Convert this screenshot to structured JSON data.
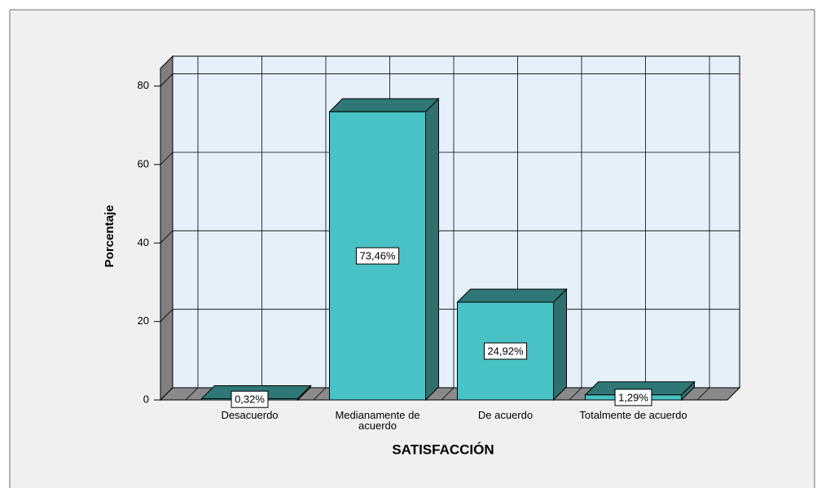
{
  "chart_data": {
    "type": "bar3d",
    "x_label": "SATISFACCIÓN",
    "y_label": "Porcentaje",
    "categories": [
      "Desacuerdo",
      "Medianamente de acuerdo",
      "De acuerdo",
      "Totalmente de acuerdo"
    ],
    "values": [
      0.32,
      73.46,
      24.92,
      1.29
    ],
    "value_labels": [
      "0,32%",
      "73,46%",
      "24,92%",
      "1,29%"
    ],
    "color": "#48c2c4",
    "ylim": [
      0,
      84.5
    ],
    "yticks": [
      0,
      20,
      40,
      60,
      80
    ],
    "grid": true
  }
}
